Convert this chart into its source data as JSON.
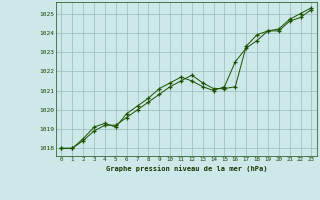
{
  "title": "Graphe pression niveau de la mer (hPa)",
  "bg_color": "#cce8e8",
  "grid_color": "#99bbbb",
  "line_color": "#1a5200",
  "marker_color": "#1a5200",
  "xlim_min": -0.5,
  "xlim_max": 23.5,
  "ylim_min": 1017.6,
  "ylim_max": 1025.6,
  "yticks": [
    1018,
    1019,
    1020,
    1021,
    1022,
    1023,
    1024,
    1025
  ],
  "xticks": [
    0,
    1,
    2,
    3,
    4,
    5,
    6,
    7,
    8,
    9,
    10,
    11,
    12,
    13,
    14,
    15,
    16,
    17,
    18,
    19,
    20,
    21,
    22,
    23
  ],
  "line1_x": [
    0,
    1,
    2,
    3,
    4,
    5,
    6,
    7,
    8,
    9,
    10,
    11,
    12,
    13,
    14,
    15,
    16,
    17,
    18,
    19,
    20,
    21,
    22,
    23
  ],
  "line1_y": [
    1018.0,
    1018.0,
    1018.4,
    1018.9,
    1019.2,
    1019.2,
    1019.6,
    1020.0,
    1020.4,
    1020.8,
    1021.2,
    1021.5,
    1021.8,
    1021.4,
    1021.1,
    1021.1,
    1021.2,
    1023.3,
    1023.9,
    1024.1,
    1024.1,
    1024.6,
    1024.8,
    1025.2
  ],
  "line2_x": [
    0,
    1,
    2,
    3,
    4,
    5,
    6,
    7,
    8,
    9,
    10,
    11,
    12,
    13,
    14,
    15,
    16,
    17,
    18,
    19,
    20,
    21,
    22,
    23
  ],
  "line2_y": [
    1018.0,
    1018.0,
    1018.5,
    1019.1,
    1019.3,
    1019.1,
    1019.8,
    1020.2,
    1020.6,
    1021.1,
    1021.4,
    1021.7,
    1021.5,
    1021.2,
    1021.0,
    1021.2,
    1022.5,
    1023.2,
    1023.6,
    1024.1,
    1024.2,
    1024.7,
    1025.0,
    1025.3
  ]
}
